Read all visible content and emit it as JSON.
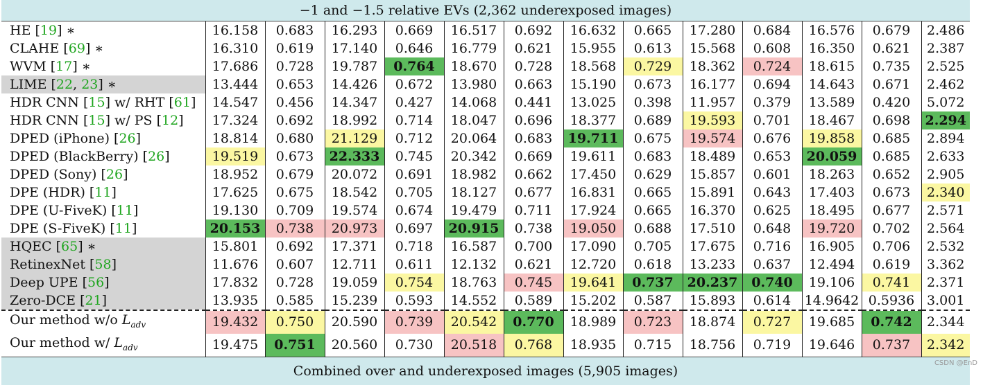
{
  "caption_top": "−1 and −1.5 relative EVs (2,362 underexposed images)",
  "caption_bottom": "Combined over and underexposed images (5,905 images)",
  "watermark": "CSDN @EnD",
  "colors": {
    "green": "#5cba5c",
    "yellow": "#fbf7a2",
    "red": "#f7c3c3",
    "gray": "#d4d4d4",
    "caption": "#cfe9ec"
  },
  "rows": [
    {
      "name": "HE",
      "refs": [
        "19"
      ],
      "star": true,
      "gray": false,
      "cells": [
        [
          "16.158",
          ""
        ],
        [
          "0.683",
          ""
        ],
        [
          "16.293",
          ""
        ],
        [
          "0.669",
          ""
        ],
        [
          "16.517",
          ""
        ],
        [
          "0.692",
          ""
        ],
        [
          "16.632",
          ""
        ],
        [
          "0.665",
          ""
        ],
        [
          "17.280",
          ""
        ],
        [
          "0.684",
          ""
        ],
        [
          "16.576",
          ""
        ],
        [
          "0.679",
          ""
        ],
        [
          "2.486",
          ""
        ]
      ]
    },
    {
      "name": "CLAHE",
      "refs": [
        "69"
      ],
      "star": true,
      "gray": false,
      "cells": [
        [
          "16.310",
          ""
        ],
        [
          "0.619",
          ""
        ],
        [
          "17.140",
          ""
        ],
        [
          "0.646",
          ""
        ],
        [
          "16.779",
          ""
        ],
        [
          "0.621",
          ""
        ],
        [
          "15.955",
          ""
        ],
        [
          "0.613",
          ""
        ],
        [
          "15.568",
          ""
        ],
        [
          "0.608",
          ""
        ],
        [
          "16.350",
          ""
        ],
        [
          "0.621",
          ""
        ],
        [
          "2.387",
          ""
        ]
      ]
    },
    {
      "name": "WVM",
      "refs": [
        "17"
      ],
      "star": true,
      "gray": false,
      "cells": [
        [
          "17.686",
          ""
        ],
        [
          "0.728",
          ""
        ],
        [
          "19.787",
          ""
        ],
        [
          "0.764",
          "g"
        ],
        [
          "18.670",
          ""
        ],
        [
          "0.728",
          ""
        ],
        [
          "18.568",
          ""
        ],
        [
          "0.729",
          "y"
        ],
        [
          "18.362",
          ""
        ],
        [
          "0.724",
          "r"
        ],
        [
          "18.615",
          ""
        ],
        [
          "0.735",
          ""
        ],
        [
          "2.525",
          ""
        ]
      ]
    },
    {
      "name": "LIME",
      "refs": [
        "22",
        "23"
      ],
      "star": true,
      "gray": true,
      "cells": [
        [
          "13.444",
          ""
        ],
        [
          "0.653",
          ""
        ],
        [
          "14.426",
          ""
        ],
        [
          "0.672",
          ""
        ],
        [
          "13.980",
          ""
        ],
        [
          "0.663",
          ""
        ],
        [
          "15.190",
          ""
        ],
        [
          "0.673",
          ""
        ],
        [
          "16.177",
          ""
        ],
        [
          "0.694",
          ""
        ],
        [
          "14.643",
          ""
        ],
        [
          "0.671",
          ""
        ],
        [
          "2.462",
          ""
        ]
      ]
    },
    {
      "name": "HDR CNN",
      "refs": [
        "15"
      ],
      "suffix": "w/ RHT",
      "suffix_refs": [
        "61"
      ],
      "star": false,
      "gray": false,
      "cells": [
        [
          "14.547",
          ""
        ],
        [
          "0.456",
          ""
        ],
        [
          "14.347",
          ""
        ],
        [
          "0.427",
          ""
        ],
        [
          "14.068",
          ""
        ],
        [
          "0.441",
          ""
        ],
        [
          "13.025",
          ""
        ],
        [
          "0.398",
          ""
        ],
        [
          "11.957",
          ""
        ],
        [
          "0.379",
          ""
        ],
        [
          "13.589",
          ""
        ],
        [
          "0.420",
          ""
        ],
        [
          "5.072",
          ""
        ]
      ]
    },
    {
      "name": "HDR CNN",
      "refs": [
        "15"
      ],
      "suffix": "w/ PS",
      "suffix_refs": [
        "12"
      ],
      "star": false,
      "gray": false,
      "cells": [
        [
          "17.324",
          ""
        ],
        [
          "0.692",
          ""
        ],
        [
          "18.992",
          ""
        ],
        [
          "0.714",
          ""
        ],
        [
          "18.047",
          ""
        ],
        [
          "0.696",
          ""
        ],
        [
          "18.377",
          ""
        ],
        [
          "0.689",
          ""
        ],
        [
          "19.593",
          "y"
        ],
        [
          "0.701",
          ""
        ],
        [
          "18.467",
          ""
        ],
        [
          "0.698",
          ""
        ],
        [
          "2.294",
          "g"
        ]
      ]
    },
    {
      "name": "DPED (iPhone)",
      "refs": [
        "26"
      ],
      "star": false,
      "gray": false,
      "cells": [
        [
          "18.814",
          ""
        ],
        [
          "0.680",
          ""
        ],
        [
          "21.129",
          "y"
        ],
        [
          "0.712",
          ""
        ],
        [
          "20.064",
          ""
        ],
        [
          "0.683",
          ""
        ],
        [
          "19.711",
          "g"
        ],
        [
          "0.675",
          ""
        ],
        [
          "19.574",
          "r"
        ],
        [
          "0.676",
          ""
        ],
        [
          "19.858",
          "y"
        ],
        [
          "0.685",
          ""
        ],
        [
          "2.894",
          ""
        ]
      ]
    },
    {
      "name": "DPED (BlackBerry)",
      "refs": [
        "26"
      ],
      "star": false,
      "gray": false,
      "cells": [
        [
          "19.519",
          "y"
        ],
        [
          "0.673",
          ""
        ],
        [
          "22.333",
          "g"
        ],
        [
          "0.745",
          ""
        ],
        [
          "20.342",
          ""
        ],
        [
          "0.669",
          ""
        ],
        [
          "19.611",
          ""
        ],
        [
          "0.683",
          ""
        ],
        [
          "18.489",
          ""
        ],
        [
          "0.653",
          ""
        ],
        [
          "20.059",
          "g"
        ],
        [
          "0.685",
          ""
        ],
        [
          "2.633",
          ""
        ]
      ]
    },
    {
      "name": "DPED (Sony)",
      "refs": [
        "26"
      ],
      "star": false,
      "gray": false,
      "cells": [
        [
          "18.952",
          ""
        ],
        [
          "0.679",
          ""
        ],
        [
          "20.072",
          ""
        ],
        [
          "0.691",
          ""
        ],
        [
          "18.982",
          ""
        ],
        [
          "0.662",
          ""
        ],
        [
          "17.450",
          ""
        ],
        [
          "0.629",
          ""
        ],
        [
          "15.857",
          ""
        ],
        [
          "0.601",
          ""
        ],
        [
          "18.263",
          ""
        ],
        [
          "0.652",
          ""
        ],
        [
          "2.905",
          ""
        ]
      ]
    },
    {
      "name": "DPE (HDR)",
      "refs": [
        "11"
      ],
      "star": false,
      "gray": false,
      "cells": [
        [
          "17.625",
          ""
        ],
        [
          "0.675",
          ""
        ],
        [
          "18.542",
          ""
        ],
        [
          "0.705",
          ""
        ],
        [
          "18.127",
          ""
        ],
        [
          "0.677",
          ""
        ],
        [
          "16.831",
          ""
        ],
        [
          "0.665",
          ""
        ],
        [
          "15.891",
          ""
        ],
        [
          "0.643",
          ""
        ],
        [
          "17.403",
          ""
        ],
        [
          "0.673",
          ""
        ],
        [
          "2.340",
          "y"
        ]
      ]
    },
    {
      "name": "DPE (U-FiveK)",
      "refs": [
        "11"
      ],
      "star": false,
      "gray": false,
      "cells": [
        [
          "19.130",
          ""
        ],
        [
          "0.709",
          ""
        ],
        [
          "19.574",
          ""
        ],
        [
          "0.674",
          ""
        ],
        [
          "19.479",
          ""
        ],
        [
          "0.711",
          ""
        ],
        [
          "17.924",
          ""
        ],
        [
          "0.665",
          ""
        ],
        [
          "16.370",
          ""
        ],
        [
          "0.625",
          ""
        ],
        [
          "18.495",
          ""
        ],
        [
          "0.677",
          ""
        ],
        [
          "2.571",
          ""
        ]
      ]
    },
    {
      "name": "DPE (S-FiveK)",
      "refs": [
        "11"
      ],
      "star": false,
      "gray": false,
      "cells": [
        [
          "20.153",
          "g"
        ],
        [
          "0.738",
          "r"
        ],
        [
          "20.973",
          "r"
        ],
        [
          "0.697",
          ""
        ],
        [
          "20.915",
          "g"
        ],
        [
          "0.738",
          ""
        ],
        [
          "19.050",
          "r"
        ],
        [
          "0.688",
          ""
        ],
        [
          "17.510",
          ""
        ],
        [
          "0.648",
          ""
        ],
        [
          "19.720",
          "r"
        ],
        [
          "0.702",
          ""
        ],
        [
          "2.564",
          ""
        ]
      ]
    },
    {
      "name": "HQEC",
      "refs": [
        "65"
      ],
      "star": true,
      "gray": true,
      "cells": [
        [
          "15.801",
          ""
        ],
        [
          "0.692",
          ""
        ],
        [
          "17.371",
          ""
        ],
        [
          "0.718",
          ""
        ],
        [
          "16.587",
          ""
        ],
        [
          "0.700",
          ""
        ],
        [
          "17.090",
          ""
        ],
        [
          "0.705",
          ""
        ],
        [
          "17.675",
          ""
        ],
        [
          "0.716",
          ""
        ],
        [
          "16.905",
          ""
        ],
        [
          "0.706",
          ""
        ],
        [
          "2.532",
          ""
        ]
      ]
    },
    {
      "name": "RetinexNet",
      "refs": [
        "58"
      ],
      "star": false,
      "gray": true,
      "cells": [
        [
          "11.676",
          ""
        ],
        [
          "0.607",
          ""
        ],
        [
          "12.711",
          ""
        ],
        [
          "0.611",
          ""
        ],
        [
          "12.132",
          ""
        ],
        [
          "0.621",
          ""
        ],
        [
          "12.720",
          ""
        ],
        [
          "0.618",
          ""
        ],
        [
          "13.233",
          ""
        ],
        [
          "0.637",
          ""
        ],
        [
          "12.494",
          ""
        ],
        [
          "0.619",
          ""
        ],
        [
          "3.362",
          ""
        ]
      ]
    },
    {
      "name": "Deep UPE",
      "refs": [
        "56"
      ],
      "star": false,
      "gray": true,
      "cells": [
        [
          "17.832",
          ""
        ],
        [
          "0.728",
          ""
        ],
        [
          "19.059",
          ""
        ],
        [
          "0.754",
          "y"
        ],
        [
          "18.763",
          ""
        ],
        [
          "0.745",
          "r"
        ],
        [
          "19.641",
          "y"
        ],
        [
          "0.737",
          "g"
        ],
        [
          "20.237",
          "g"
        ],
        [
          "0.740",
          "g"
        ],
        [
          "19.106",
          ""
        ],
        [
          "0.741",
          "y"
        ],
        [
          "2.371",
          ""
        ]
      ]
    },
    {
      "name": "Zero-DCE",
      "refs": [
        "21"
      ],
      "star": false,
      "gray": true,
      "cells": [
        [
          "13.935",
          ""
        ],
        [
          "0.585",
          ""
        ],
        [
          "15.239",
          ""
        ],
        [
          "0.593",
          ""
        ],
        [
          "14.552",
          ""
        ],
        [
          "0.589",
          ""
        ],
        [
          "15.202",
          ""
        ],
        [
          "0.587",
          ""
        ],
        [
          "15.893",
          ""
        ],
        [
          "0.614",
          ""
        ],
        [
          "14.9642",
          ""
        ],
        [
          "0.5936",
          ""
        ],
        [
          "3.001",
          ""
        ]
      ]
    },
    {
      "name": "Our method w/o",
      "math": "L",
      "math_sub": "adv",
      "refs": [],
      "star": false,
      "gray": false,
      "dashed": true,
      "cells": [
        [
          "19.432",
          "r"
        ],
        [
          "0.750",
          "y"
        ],
        [
          "20.590",
          ""
        ],
        [
          "0.739",
          "r"
        ],
        [
          "20.542",
          "y"
        ],
        [
          "0.770",
          "g"
        ],
        [
          "18.989",
          ""
        ],
        [
          "0.723",
          "r"
        ],
        [
          "18.874",
          ""
        ],
        [
          "0.727",
          "y"
        ],
        [
          "19.685",
          ""
        ],
        [
          "0.742",
          "g"
        ],
        [
          "2.344",
          ""
        ]
      ]
    },
    {
      "name": "Our method w/",
      "math": "L",
      "math_sub": "adv",
      "refs": [],
      "star": false,
      "gray": false,
      "cells": [
        [
          "19.475",
          ""
        ],
        [
          "0.751",
          "g"
        ],
        [
          "20.560",
          ""
        ],
        [
          "0.730",
          ""
        ],
        [
          "20.518",
          "r"
        ],
        [
          "0.768",
          "y"
        ],
        [
          "18.935",
          ""
        ],
        [
          "0.715",
          ""
        ],
        [
          "18.756",
          ""
        ],
        [
          "0.719",
          ""
        ],
        [
          "19.646",
          ""
        ],
        [
          "0.737",
          "r"
        ],
        [
          "2.342",
          "y"
        ]
      ]
    }
  ]
}
